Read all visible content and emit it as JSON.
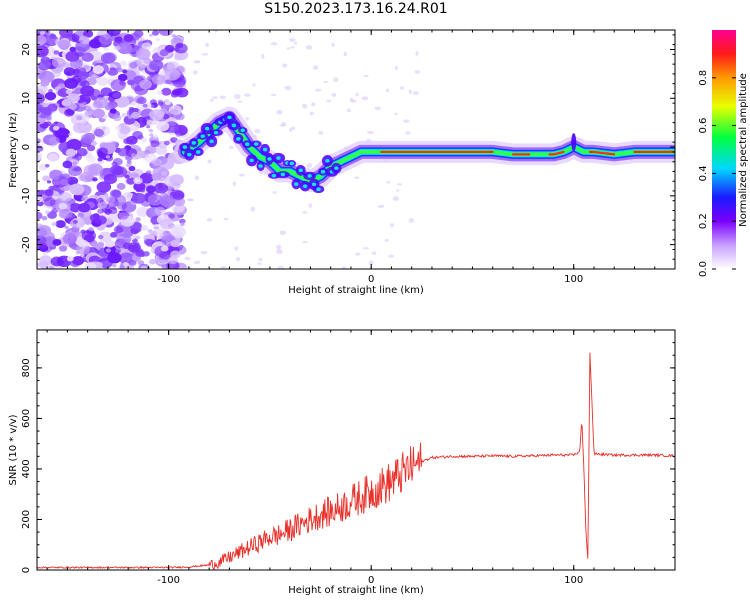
{
  "figure": {
    "title": "S150.2023.173.16.24.R01"
  },
  "chart_data": [
    {
      "type": "heatmap",
      "title": "",
      "xlabel": "Height of straight line (km)",
      "ylabel": "Frequency (Hz)",
      "xlim": [
        -165,
        150
      ],
      "ylim": [
        -25,
        24
      ],
      "x_ticks": [
        -100,
        0,
        100
      ],
      "y_ticks": [
        -20,
        -10,
        0,
        10,
        20
      ],
      "colorbar": {
        "label": "Normalized spectral amplitude",
        "range": [
          0,
          1
        ],
        "ticks": [
          "0.0",
          "0.2",
          "0.4",
          "0.6",
          "0.8"
        ],
        "colormap": "rainbow (white-violet-blue-cyan-green-yellow-orange-red-magenta)"
      },
      "ridge": {
        "description": "spectral ridge frequency vs height",
        "x": [
          -92,
          -85,
          -80,
          -75,
          -70,
          -65,
          -60,
          -55,
          -50,
          -45,
          -40,
          -35,
          -30,
          -25,
          -20,
          -15,
          -10,
          -5,
          0,
          10,
          20,
          30,
          40,
          50,
          60,
          70,
          80,
          90,
          95,
          100,
          105,
          110,
          120,
          130,
          140,
          150
        ],
        "y": [
          -1,
          1,
          3,
          5,
          6,
          3,
          0,
          -2,
          -3,
          -5,
          -5,
          -6,
          -7,
          -6,
          -4,
          -3,
          -2,
          -1,
          -1,
          -1,
          -1,
          -1,
          -1,
          -1,
          -1,
          -1.5,
          -1.5,
          -1.5,
          -1,
          0,
          -1,
          -1,
          -1.5,
          -1,
          -1,
          -1
        ],
        "noise_region_x": [
          -165,
          -93
        ]
      }
    },
    {
      "type": "line",
      "title": "",
      "xlabel": "Height of straight line (km)",
      "ylabel": "SNR (10 * v/v)",
      "xlim": [
        -165,
        150
      ],
      "ylim": [
        0,
        950
      ],
      "x_ticks": [
        -100,
        0,
        100
      ],
      "y_ticks": [
        0,
        200,
        400,
        600,
        800
      ],
      "series": [
        {
          "color": "#e8302a",
          "x": [
            -165,
            -150,
            -135,
            -120,
            -100,
            -90,
            -80,
            -75,
            -70,
            -65,
            -60,
            -55,
            -50,
            -45,
            -40,
            -35,
            -30,
            -25,
            -20,
            -15,
            -10,
            -5,
            0,
            5,
            10,
            15,
            20,
            25,
            30,
            40,
            50,
            60,
            70,
            80,
            90,
            95,
            100,
            103,
            104,
            105,
            106,
            107,
            108,
            110,
            120,
            130,
            140,
            150
          ],
          "y": [
            10,
            10,
            10,
            10,
            10,
            12,
            20,
            30,
            50,
            70,
            90,
            110,
            130,
            140,
            160,
            180,
            200,
            220,
            230,
            250,
            270,
            290,
            310,
            330,
            350,
            380,
            410,
            430,
            445,
            450,
            450,
            452,
            450,
            452,
            455,
            455,
            455,
            470,
            600,
            400,
            150,
            40,
            860,
            460,
            455,
            455,
            455,
            452
          ]
        }
      ]
    }
  ]
}
